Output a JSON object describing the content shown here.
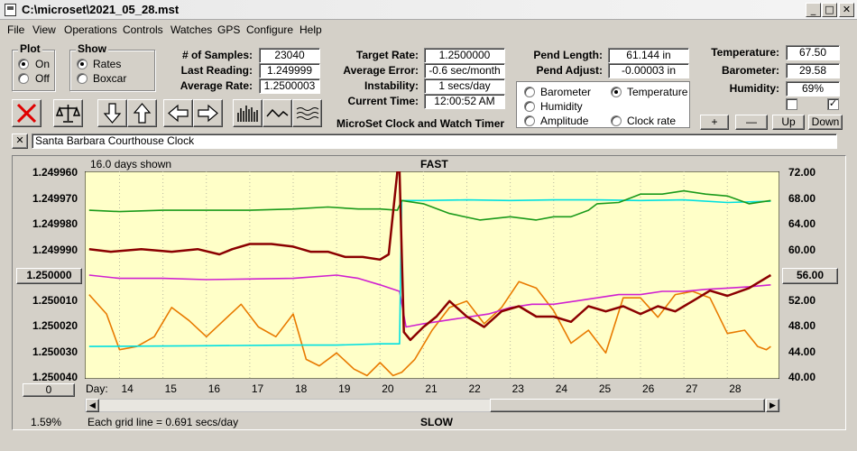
{
  "window": {
    "title": "C:\\microset\\2021_05_28.mst",
    "minimize": "_",
    "maximize": "□",
    "close": "✕"
  },
  "menu": [
    "File",
    "View",
    "Operations",
    "Controls",
    "Watches",
    "GPS",
    "Configure",
    "Help"
  ],
  "plot_group": {
    "title": "Plot",
    "options": [
      "On",
      "Off"
    ],
    "selected": "On"
  },
  "show_group": {
    "title": "Show",
    "options": [
      "Rates",
      "Boxcar"
    ],
    "selected": "Rates"
  },
  "stats": {
    "samples_label": "# of Samples:",
    "samples": "23040",
    "last_label": "Last Reading:",
    "last": "1.249999",
    "avg_label": "Average Rate:",
    "avg": "1.2500003"
  },
  "target": {
    "target_label": "Target Rate:",
    "target": "1.2500000",
    "error_label": "Average Error:",
    "error": "-0.6 sec/month",
    "instab_label": "Instability:",
    "instab": "1 secs/day",
    "time_label": "Current Time:",
    "time": "12:00:52 AM"
  },
  "app_name": "MicroSet Clock and Watch Timer",
  "pend": {
    "length_label": "Pend Length:",
    "length": "61.144 in",
    "adjust_label": "Pend Adjust:",
    "adjust": "-0.00003 in"
  },
  "sensor_options": [
    {
      "label": "Barometer",
      "color": "#e87a00",
      "selected": false
    },
    {
      "label": "Temperature",
      "color": "#1a9a1a",
      "selected": true
    },
    {
      "label": "Humidity",
      "color": "#d020d0",
      "selected": false
    },
    {
      "label": "Clock rate",
      "color": "#8b0000",
      "selected": false
    },
    {
      "label": "Amplitude",
      "color": "#00d0e0",
      "selected": false
    }
  ],
  "env": {
    "temp_label": "Temperature:",
    "temp": "67.50",
    "baro_label": "Barometer:",
    "baro": "29.58",
    "hum_label": "Humidity:",
    "hum": "69%"
  },
  "checkbox_right_checked": "✓",
  "env_buttons": [
    "+",
    "—",
    "Up",
    "Down"
  ],
  "clock_name": "Santa Barbara Courthouse Clock",
  "clear_btn": "✕",
  "chart": {
    "days_shown": "16.0 days shown",
    "top_label": "FAST",
    "bottom_label": "SLOW",
    "grid_note": "Each grid line = 0.691 secs/day",
    "percent": "1.59%",
    "day_label": "Day:",
    "left_ticks": [
      "1.249960",
      "1.249970",
      "1.249980",
      "1.249990",
      "1.250000",
      "1.250010",
      "1.250020",
      "1.250030",
      "1.250040"
    ],
    "center_rate_button": "1.250000",
    "right_ticks": [
      "72.00",
      "68.00",
      "64.00",
      "60.00",
      "56.00",
      "52.00",
      "48.00",
      "44.00",
      "40.00"
    ],
    "right_button": "56.00",
    "left_bottom_button": "0",
    "days": [
      "14",
      "15",
      "16",
      "17",
      "18",
      "19",
      "20",
      "21",
      "22",
      "23",
      "24",
      "25",
      "26",
      "27",
      "28"
    ]
  },
  "colors": {
    "plot_bg": "#ffffc8",
    "barometer": "#e87a00",
    "temperature": "#1a9a1a",
    "humidity": "#d020d0",
    "clock_rate": "#8b0000",
    "amplitude": "#00e0e0"
  },
  "chart_data": {
    "type": "line",
    "x_label": "Day",
    "x_range": [
      13.2,
      29.2
    ],
    "y_left_range": [
      1.24996,
      1.25004
    ],
    "y_left_note": "inverted: FAST at top (1.249960), SLOW at bottom (1.250040)",
    "y_right_range": [
      40,
      72
    ],
    "series": [
      {
        "name": "Clock rate",
        "axis": "left",
        "x": [
          13.3,
          13.8,
          14.5,
          15.2,
          15.8,
          16.3,
          16.6,
          17.0,
          17.5,
          18.0,
          18.4,
          18.8,
          19.2,
          19.6,
          20.0,
          20.2,
          20.4,
          20.45,
          20.55,
          20.7,
          21.0,
          21.3,
          21.6,
          22.0,
          22.4,
          22.8,
          23.2,
          23.6,
          24.0,
          24.4,
          24.8,
          25.2,
          25.6,
          26.0,
          26.4,
          26.8,
          27.2,
          27.6,
          28.0,
          28.5,
          29.0
        ],
        "y": [
          1.24999,
          1.249991,
          1.24999,
          1.249991,
          1.24999,
          1.249992,
          1.24999,
          1.249988,
          1.249988,
          1.249989,
          1.249991,
          1.249991,
          1.249993,
          1.249993,
          1.249994,
          1.249992,
          1.24996,
          1.24996,
          1.250022,
          1.250025,
          1.25002,
          1.250016,
          1.25001,
          1.250016,
          1.25002,
          1.250014,
          1.250012,
          1.250016,
          1.250016,
          1.250018,
          1.250012,
          1.250014,
          1.250012,
          1.250015,
          1.250012,
          1.250014,
          1.25001,
          1.250006,
          1.250008,
          1.250005,
          1.25
        ]
      },
      {
        "name": "Temperature",
        "axis": "right",
        "x": [
          13.3,
          14.0,
          15.0,
          16.0,
          17.0,
          18.0,
          18.8,
          19.5,
          20.0,
          20.4,
          20.5,
          21.0,
          21.6,
          22.3,
          23.0,
          23.6,
          24.0,
          24.4,
          24.8,
          25.0,
          25.5,
          26.0,
          26.5,
          27.0,
          27.5,
          28.0,
          28.5,
          29.0
        ],
        "y": [
          66.0,
          65.8,
          66.0,
          66.0,
          66.0,
          66.2,
          66.5,
          66.2,
          66.2,
          66.0,
          67.5,
          67.0,
          65.5,
          64.5,
          65.0,
          64.5,
          65.0,
          65.0,
          66.0,
          67.0,
          67.2,
          68.5,
          68.5,
          69.0,
          68.5,
          68.2,
          67.0,
          67.5
        ]
      },
      {
        "name": "Amplitude",
        "axis": "right",
        "x": [
          13.3,
          16.0,
          18.0,
          19.0,
          20.0,
          20.45,
          20.5,
          21.0,
          22.0,
          23.0,
          24.0,
          25.0,
          26.0,
          27.0,
          28.0,
          29.0
        ],
        "y": [
          45.0,
          45.1,
          45.2,
          45.2,
          45.4,
          45.4,
          67.5,
          67.5,
          67.6,
          67.5,
          67.6,
          67.6,
          67.5,
          67.6,
          67.2,
          67.4
        ]
      },
      {
        "name": "Humidity",
        "axis": "right",
        "x": [
          13.3,
          14.0,
          15.0,
          16.0,
          17.0,
          18.0,
          19.0,
          19.5,
          20.0,
          20.45,
          20.6,
          21.0,
          22.0,
          22.5,
          23.0,
          23.5,
          24.0,
          24.5,
          25.0,
          25.5,
          26.0,
          26.5,
          27.0,
          27.5,
          28.0,
          28.5,
          29.0
        ],
        "y": [
          56.0,
          55.5,
          55.5,
          55.3,
          55.4,
          55.5,
          56.0,
          55.5,
          54.5,
          53.5,
          48.0,
          48.5,
          49.5,
          50.0,
          51.0,
          51.5,
          51.5,
          52.0,
          52.5,
          53.0,
          53.0,
          53.5,
          53.5,
          53.8,
          54.0,
          54.2,
          54.5
        ]
      },
      {
        "name": "Barometer",
        "axis": "right",
        "x": [
          13.3,
          13.7,
          14.0,
          14.4,
          14.8,
          15.2,
          15.6,
          16.0,
          16.4,
          16.8,
          17.2,
          17.6,
          18.0,
          18.3,
          18.6,
          19.0,
          19.4,
          19.7,
          20.0,
          20.3,
          20.5,
          20.8,
          21.2,
          21.6,
          22.0,
          22.4,
          22.8,
          23.2,
          23.6,
          24.0,
          24.4,
          24.8,
          25.2,
          25.6,
          26.0,
          26.4,
          26.8,
          27.2,
          27.6,
          28.0,
          28.4,
          28.7,
          28.9,
          29.0
        ],
        "y": [
          53.0,
          50.0,
          44.5,
          45.0,
          46.5,
          51.0,
          49.0,
          46.5,
          49.0,
          51.5,
          48.0,
          46.5,
          50.0,
          43.0,
          42.0,
          44.0,
          41.5,
          40.5,
          42.5,
          40.5,
          41.0,
          43.0,
          47.5,
          51.0,
          52.0,
          48.5,
          51.0,
          55.0,
          54.0,
          50.5,
          45.5,
          47.5,
          44.0,
          52.5,
          52.5,
          49.5,
          53.0,
          53.5,
          52.5,
          47.0,
          47.5,
          45.0,
          44.5,
          45.0
        ]
      }
    ]
  }
}
